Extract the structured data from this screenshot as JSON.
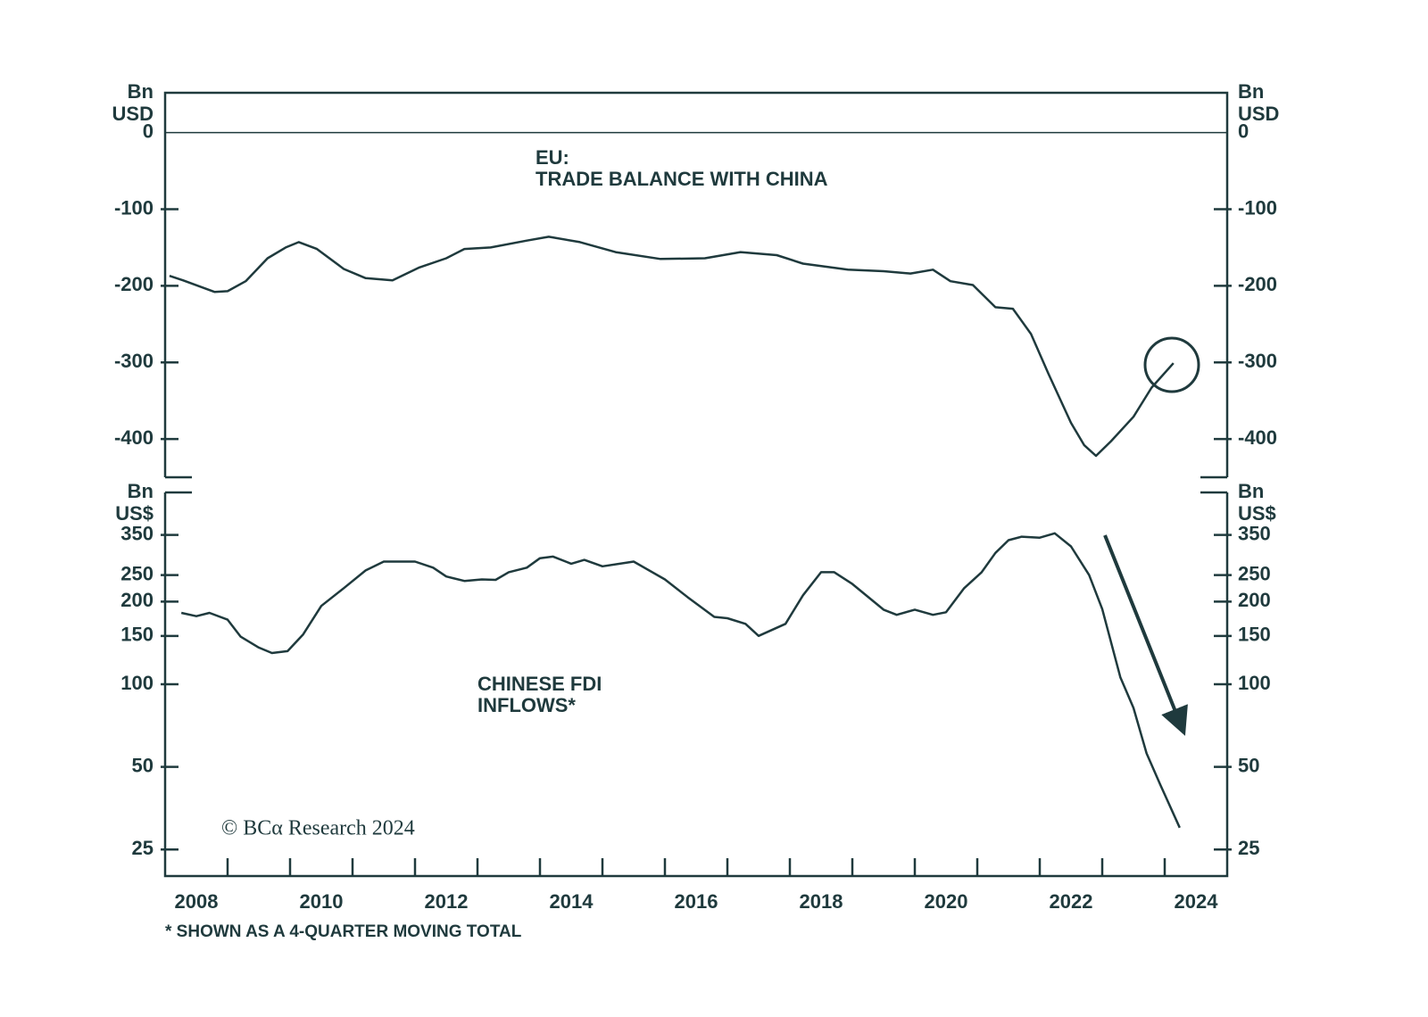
{
  "chart_data": [
    {
      "type": "line",
      "title": [
        "EU:",
        "TRADE BALANCE WITH CHINA"
      ],
      "y_unit": [
        "Bn",
        "USD"
      ],
      "color": "#1f3a3d",
      "x": [
        2008.07,
        2008.29,
        2008.79,
        2009.0,
        2009.29,
        2009.64,
        2009.93,
        2010.14,
        2010.43,
        2010.86,
        2011.21,
        2011.64,
        2012.07,
        2012.5,
        2012.79,
        2013.21,
        2013.79,
        2014.14,
        2014.64,
        2015.21,
        2015.93,
        2016.64,
        2017.21,
        2017.79,
        2018.21,
        2018.93,
        2019.5,
        2019.93,
        2020.29,
        2020.57,
        2020.93,
        2021.29,
        2021.57,
        2021.86,
        2022.14,
        2022.5,
        2022.71,
        2022.9,
        2023.14,
        2023.5,
        2023.79,
        2024.14
      ],
      "values": [
        -187,
        -193,
        -208,
        -207,
        -194,
        -164,
        -150,
        -143,
        -152,
        -178,
        -190,
        -193,
        -176,
        -164,
        -152,
        -150,
        -141,
        -136,
        -143,
        -156,
        -165,
        -164,
        -156,
        -160,
        -171,
        -179,
        -181,
        -184,
        -179,
        -194,
        -199,
        -228,
        -230,
        -263,
        -315,
        -379,
        -408,
        -422,
        -403,
        -371,
        -333,
        -301
      ],
      "ylim": [
        -450,
        52
      ],
      "yticks": [
        0,
        -100,
        -200,
        -300,
        -400
      ],
      "zero_line": true
    },
    {
      "type": "line",
      "title": [
        "CHINESE FDI",
        "INFLOWS*"
      ],
      "y_unit": [
        "Bn",
        "US$"
      ],
      "color": "#1f3a3d",
      "log_scale": true,
      "x": [
        2008.26,
        2008.5,
        2008.71,
        2009.0,
        2009.21,
        2009.5,
        2009.71,
        2009.96,
        2010.21,
        2010.5,
        2010.86,
        2011.21,
        2011.5,
        2012.0,
        2012.29,
        2012.5,
        2012.79,
        2013.07,
        2013.29,
        2013.5,
        2013.79,
        2014.0,
        2014.21,
        2014.5,
        2014.71,
        2015.0,
        2015.5,
        2016.0,
        2016.36,
        2016.79,
        2017.0,
        2017.29,
        2017.5,
        2017.93,
        2018.21,
        2018.5,
        2018.71,
        2019.0,
        2019.5,
        2019.71,
        2020.0,
        2020.29,
        2020.5,
        2020.79,
        2021.07,
        2021.29,
        2021.5,
        2021.71,
        2022.0,
        2022.24,
        2022.5,
        2022.79,
        2023.0,
        2023.29,
        2023.5,
        2023.71,
        2023.93,
        2024.24
      ],
      "values": [
        182,
        177,
        182,
        172,
        149,
        136,
        130,
        132,
        152,
        193,
        224,
        260,
        280,
        280,
        266,
        247,
        238,
        241,
        240,
        256,
        266,
        288,
        292,
        275,
        284,
        269,
        280,
        241,
        208,
        176,
        174,
        166,
        150,
        166,
        211,
        256,
        256,
        232,
        187,
        179,
        187,
        179,
        183,
        224,
        256,
        301,
        335,
        345,
        342,
        355,
        318,
        250,
        188,
        106,
        82,
        56,
        43,
        30
      ],
      "ylim": [
        20,
        500
      ],
      "yticks": [
        350,
        250,
        200,
        150,
        100,
        50,
        25
      ],
      "xlim": [
        2008,
        2025
      ],
      "xticks": [
        2008,
        2010,
        2012,
        2014,
        2016,
        2018,
        2020,
        2022,
        2024
      ],
      "xminor_ticks": [
        2009,
        2010,
        2011,
        2012,
        2013,
        2014,
        2015,
        2016,
        2017,
        2018,
        2019,
        2020,
        2021,
        2022,
        2023,
        2024
      ]
    }
  ],
  "source": "© BCα Research 2024",
  "footnote": "* SHOWN AS A 4-QUARTER MOVING TOTAL"
}
